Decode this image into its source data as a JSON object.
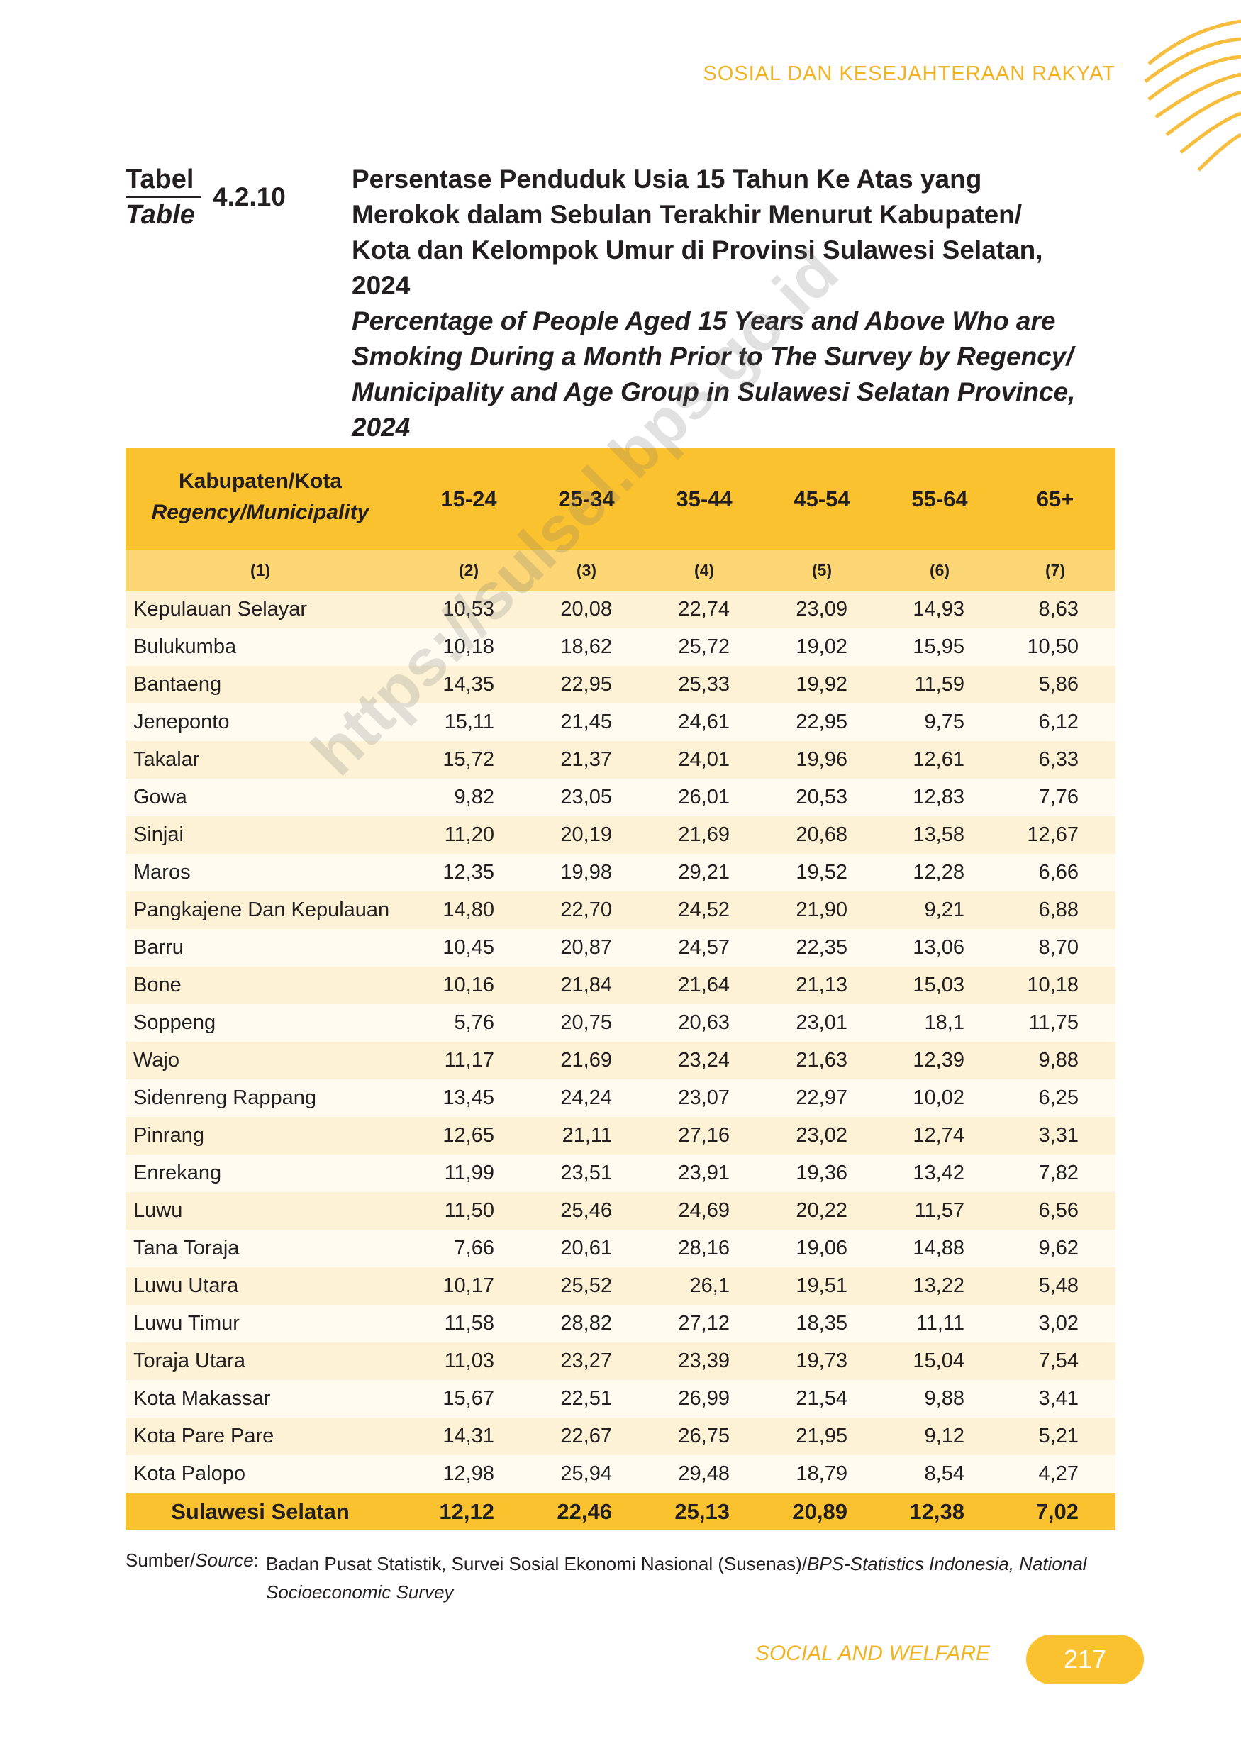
{
  "header": {
    "section": "SOSIAL DAN KESEJAHTERAAN RAKYAT"
  },
  "caption": {
    "label_id": "Tabel",
    "label_en": "Table",
    "number": "4.2.10",
    "title_id": [
      "Persentase Penduduk Usia 15 Tahun Ke Atas yang",
      "Merokok dalam Sebulan Terakhir Menurut Kabupaten/",
      "Kota dan Kelompok Umur di Provinsi Sulawesi Selatan,",
      "2024"
    ],
    "title_en": [
      "Percentage of People Aged 15 Years and Above Who are",
      "Smoking During a Month Prior to The Survey by Regency/",
      "Municipality and Age Group in Sulawesi Selatan Province,",
      "2024"
    ]
  },
  "table": {
    "first_header_id": "Kabupaten/Kota",
    "first_header_en": "Regency/Municipality",
    "columns": [
      "15-24",
      "25-34",
      "35-44",
      "45-54",
      "55-64",
      "65+"
    ],
    "column_numbers": [
      "(1)",
      "(2)",
      "(3)",
      "(4)",
      "(5)",
      "(6)",
      "(7)"
    ],
    "rows": [
      [
        "Kepulauan Selayar",
        "10,53",
        "20,08",
        "22,74",
        "23,09",
        "14,93",
        "8,63"
      ],
      [
        "Bulukumba",
        "10,18",
        "18,62",
        "25,72",
        "19,02",
        "15,95",
        "10,50"
      ],
      [
        "Bantaeng",
        "14,35",
        "22,95",
        "25,33",
        "19,92",
        "11,59",
        "5,86"
      ],
      [
        "Jeneponto",
        "15,11",
        "21,45",
        "24,61",
        "22,95",
        "9,75",
        "6,12"
      ],
      [
        "Takalar",
        "15,72",
        "21,37",
        "24,01",
        "19,96",
        "12,61",
        "6,33"
      ],
      [
        "Gowa",
        "9,82",
        "23,05",
        "26,01",
        "20,53",
        "12,83",
        "7,76"
      ],
      [
        "Sinjai",
        "11,20",
        "20,19",
        "21,69",
        "20,68",
        "13,58",
        "12,67"
      ],
      [
        "Maros",
        "12,35",
        "19,98",
        "29,21",
        "19,52",
        "12,28",
        "6,66"
      ],
      [
        "Pangkajene Dan Kepulauan",
        "14,80",
        "22,70",
        "24,52",
        "21,90",
        "9,21",
        "6,88"
      ],
      [
        "Barru",
        "10,45",
        "20,87",
        "24,57",
        "22,35",
        "13,06",
        "8,70"
      ],
      [
        "Bone",
        "10,16",
        "21,84",
        "21,64",
        "21,13",
        "15,03",
        "10,18"
      ],
      [
        "Soppeng",
        "5,76",
        "20,75",
        "20,63",
        "23,01",
        "18,1",
        "11,75"
      ],
      [
        "Wajo",
        "11,17",
        "21,69",
        "23,24",
        "21,63",
        "12,39",
        "9,88"
      ],
      [
        "Sidenreng Rappang",
        "13,45",
        "24,24",
        "23,07",
        "22,97",
        "10,02",
        "6,25"
      ],
      [
        "Pinrang",
        "12,65",
        "21,11",
        "27,16",
        "23,02",
        "12,74",
        "3,31"
      ],
      [
        "Enrekang",
        "11,99",
        "23,51",
        "23,91",
        "19,36",
        "13,42",
        "7,82"
      ],
      [
        "Luwu",
        "11,50",
        "25,46",
        "24,69",
        "20,22",
        "11,57",
        "6,56"
      ],
      [
        "Tana Toraja",
        "7,66",
        "20,61",
        "28,16",
        "19,06",
        "14,88",
        "9,62"
      ],
      [
        "Luwu Utara",
        "10,17",
        "25,52",
        "26,1",
        "19,51",
        "13,22",
        "5,48"
      ],
      [
        "Luwu Timur",
        "11,58",
        "28,82",
        "27,12",
        "18,35",
        "11,11",
        "3,02"
      ],
      [
        "Toraja Utara",
        "11,03",
        "23,27",
        "23,39",
        "19,73",
        "15,04",
        "7,54"
      ],
      [
        "Kota Makassar",
        "15,67",
        "22,51",
        "26,99",
        "21,54",
        "9,88",
        "3,41"
      ],
      [
        "Kota Pare Pare",
        "14,31",
        "22,67",
        "26,75",
        "21,95",
        "9,12",
        "5,21"
      ],
      [
        "Kota Palopo",
        "12,98",
        "25,94",
        "29,48",
        "18,79",
        "8,54",
        "4,27"
      ]
    ],
    "total": [
      "Sulawesi Selatan",
      "12,12",
      "22,46",
      "25,13",
      "20,89",
      "12,38",
      "7,02"
    ]
  },
  "source": {
    "label_id": "Sumber/",
    "label_en": "Source",
    "colon": ":",
    "text_id": "Badan Pusat Statistik, Survei Sosial Ekonomi Nasional (Susenas)/",
    "text_en": "BPS-Statistics Indonesia, National Socioeconomic Survey"
  },
  "watermark": "https://sulsel.bps.go.id",
  "footer": {
    "section": "SOCIAL AND WELFARE",
    "page": "217"
  }
}
